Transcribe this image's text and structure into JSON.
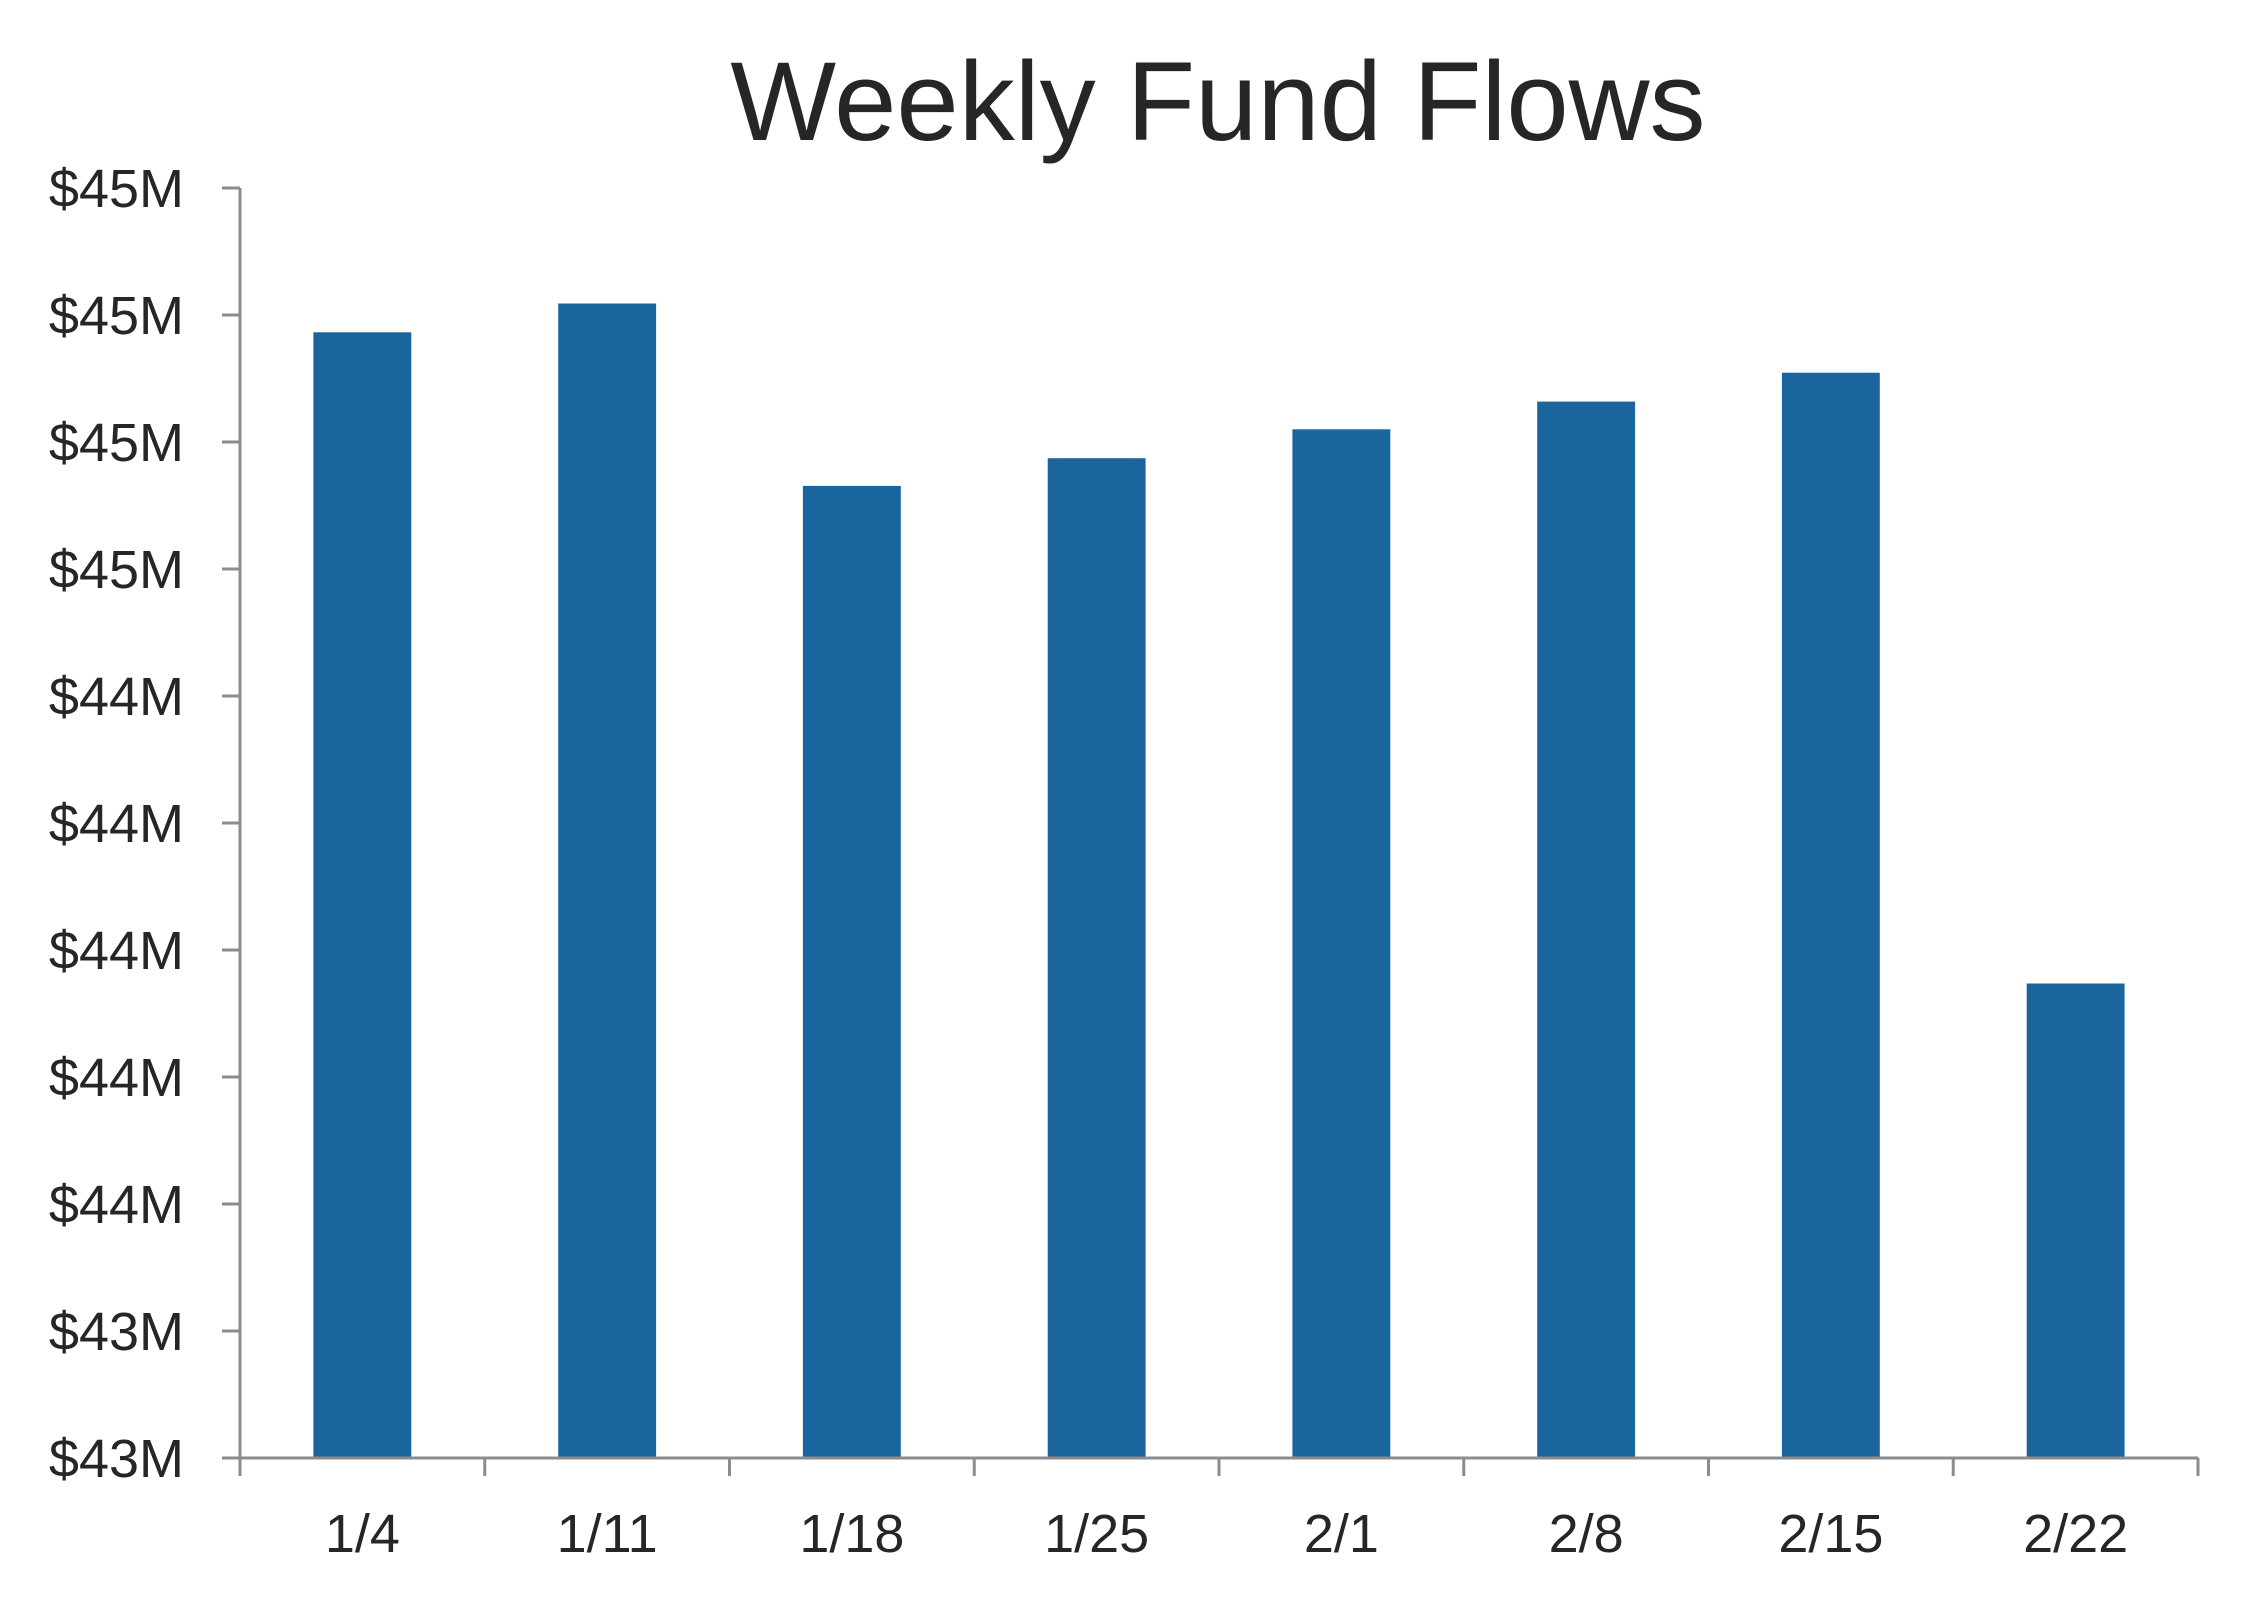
{
  "chart_data": {
    "type": "bar",
    "title": "Weekly Fund Flows",
    "xlabel": "",
    "ylabel": "",
    "categories": [
      "1/4",
      "1/11",
      "1/18",
      "1/25",
      "2/1",
      "2/8",
      "2/15",
      "2/22"
    ],
    "series": [
      {
        "values": [
          44.875,
          45.0,
          44.21,
          44.33,
          44.455,
          44.575,
          44.7,
          42.055
        ]
      }
    ],
    "ylim": [
      40.0,
      45.5
    ],
    "y_tick_labels": [
      "$43M",
      "$43M",
      "$44M",
      "$44M",
      "$44M",
      "$44M",
      "$44M",
      "$45M",
      "$45M",
      "$45M",
      "$45M"
    ],
    "grid": false,
    "legend": "none",
    "colors": {
      "bar": "#1a659e",
      "text": "#262626",
      "axis": "#8c8c8c",
      "background": "#ffffff"
    }
  }
}
